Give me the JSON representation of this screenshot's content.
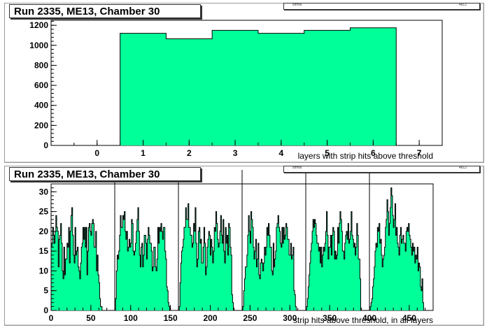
{
  "colors": {
    "fill": "#00ff99",
    "line": "#000000",
    "frame": "#9a9a9a"
  },
  "chart_data": [
    {
      "type": "bar",
      "title": "Run 2335, ME13, Chamber 30",
      "stats_label": "strhits",
      "stats_value": "4812",
      "xlabel": "layers with strip hits above threshold",
      "ylabel": "",
      "xlim": [
        -1,
        7.5
      ],
      "ylim": [
        0,
        1250
      ],
      "bin_width": 1,
      "x": [
        1,
        2,
        3,
        4,
        5,
        6
      ],
      "values": [
        1120,
        1065,
        1150,
        1120,
        1150,
        1175
      ],
      "x_ticks": [
        0,
        1,
        2,
        3,
        4,
        5,
        6,
        7
      ],
      "x_tick_labels": [
        "0",
        "1",
        "2",
        "3",
        "4",
        "5",
        "6",
        "7"
      ],
      "y_ticks": [
        0,
        200,
        400,
        600,
        800,
        1000,
        1200
      ],
      "y_tick_labels": [
        "0",
        "200",
        "400",
        "600",
        "800",
        "1000",
        "1200"
      ],
      "grid": false,
      "legend": "none"
    },
    {
      "type": "bar",
      "title": "Run 2335, ME13, Chamber 30",
      "stats_label": "strhits",
      "stats_value": "4812",
      "xlabel": "strip hits above threshold, in all layers",
      "ylabel": "",
      "xlim": [
        0,
        480
      ],
      "ylim": [
        0,
        32
      ],
      "bin_width": 1,
      "separators": [
        80,
        160,
        240,
        320,
        400
      ],
      "x_ticks": [
        0,
        50,
        100,
        150,
        200,
        250,
        300,
        350,
        400,
        450
      ],
      "x_tick_labels": [
        "0",
        "50",
        "100",
        "150",
        "200",
        "250",
        "300",
        "350",
        "400",
        "450"
      ],
      "y_ticks": [
        0,
        5,
        10,
        15,
        20,
        25,
        30
      ],
      "y_tick_labels": [
        "0",
        "5",
        "10",
        "15",
        "20",
        "25",
        "30"
      ],
      "grid": false,
      "legend": "none",
      "values": [
        16,
        17,
        21,
        19,
        17,
        20,
        24,
        21,
        20,
        11,
        18,
        19,
        22,
        17,
        10,
        8,
        16,
        9,
        13,
        13,
        17,
        16,
        21,
        12,
        20,
        24,
        26,
        19,
        14,
        12,
        21,
        14,
        15,
        16,
        11,
        10,
        8,
        12,
        16,
        17,
        21,
        18,
        21,
        16,
        21,
        9,
        15,
        21,
        22,
        20,
        19,
        22,
        23,
        22,
        16,
        16,
        20,
        10,
        14,
        9,
        7,
        3,
        1,
        1,
        0,
        0,
        0,
        0,
        0,
        0,
        0,
        0,
        0,
        0,
        0,
        0,
        0,
        0,
        0,
        0,
        0,
        3,
        10,
        14,
        13,
        15,
        19,
        24,
        21,
        21,
        24,
        23,
        25,
        20,
        18,
        20,
        15,
        16,
        18,
        16,
        17,
        23,
        22,
        15,
        14,
        15,
        17,
        20,
        23,
        26,
        20,
        14,
        11,
        16,
        17,
        11,
        14,
        19,
        19,
        17,
        13,
        18,
        21,
        19,
        17,
        17,
        15,
        10,
        11,
        16,
        16,
        11,
        10,
        13,
        21,
        17,
        21,
        20,
        22,
        20,
        18,
        21,
        21,
        15,
        13,
        6,
        5,
        2,
        1,
        0,
        0,
        0,
        0,
        0,
        0,
        0,
        0,
        0,
        0,
        0,
        0,
        1,
        7,
        12,
        15,
        16,
        18,
        21,
        21,
        26,
        23,
        23,
        27,
        21,
        21,
        19,
        19,
        16,
        17,
        22,
        20,
        26,
        17,
        11,
        13,
        20,
        21,
        17,
        18,
        12,
        12,
        16,
        21,
        17,
        9,
        11,
        16,
        18,
        20,
        19,
        14,
        18,
        16,
        12,
        15,
        21,
        20,
        25,
        22,
        18,
        16,
        17,
        20,
        24,
        19,
        17,
        23,
        15,
        12,
        21,
        17,
        19,
        14,
        22,
        21,
        16,
        14,
        4,
        2,
        0,
        0,
        0,
        0,
        0,
        0,
        0,
        0,
        0,
        0,
        0,
        0,
        1,
        5,
        8,
        11,
        11,
        14,
        19,
        24,
        20,
        17,
        25,
        23,
        21,
        16,
        13,
        15,
        18,
        11,
        13,
        17,
        9,
        8,
        12,
        13,
        12,
        10,
        12,
        16,
        14,
        16,
        21,
        19,
        22,
        19,
        16,
        16,
        10,
        9,
        17,
        11,
        13,
        15,
        21,
        22,
        24,
        21,
        20,
        17,
        16,
        21,
        17,
        21,
        18,
        19,
        22,
        21,
        18,
        18,
        14,
        14,
        17,
        13,
        14,
        16,
        5,
        4,
        1,
        0,
        0,
        0,
        0,
        0,
        0,
        0,
        0,
        0,
        0,
        0,
        0,
        0,
        1,
        3,
        6,
        9,
        12,
        15,
        17,
        20,
        23,
        21,
        23,
        22,
        19,
        17,
        17,
        15,
        16,
        12,
        16,
        11,
        14,
        16,
        15,
        17,
        20,
        25,
        19,
        13,
        16,
        16,
        19,
        14,
        19,
        21,
        20,
        13,
        15,
        13,
        14,
        21,
        17,
        22,
        25,
        23,
        20,
        15,
        15,
        13,
        17,
        19,
        20,
        18,
        22,
        17,
        18,
        20,
        25,
        19,
        18,
        16,
        17,
        14,
        16,
        22,
        19,
        13,
        13,
        8,
        0,
        0,
        0,
        0,
        0,
        0,
        0,
        0,
        0,
        0,
        0,
        0,
        1,
        2,
        3,
        6,
        8,
        11,
        15,
        17,
        16,
        21,
        20,
        22,
        17,
        18,
        14,
        11,
        13,
        14,
        16,
        21,
        23,
        28,
        25,
        19,
        22,
        26,
        31,
        29,
        24,
        21,
        23,
        27,
        19,
        21,
        17,
        16,
        14,
        19,
        21,
        17,
        18,
        19,
        17,
        17,
        15,
        20,
        21,
        20,
        22,
        19,
        18,
        16,
        14,
        17,
        15,
        16,
        12,
        14,
        13,
        16,
        10,
        12,
        11,
        6,
        5,
        8,
        2,
        0,
        0,
        0,
        0,
        0,
        0,
        0,
        0,
        0,
        0,
        0,
        0
      ]
    }
  ]
}
